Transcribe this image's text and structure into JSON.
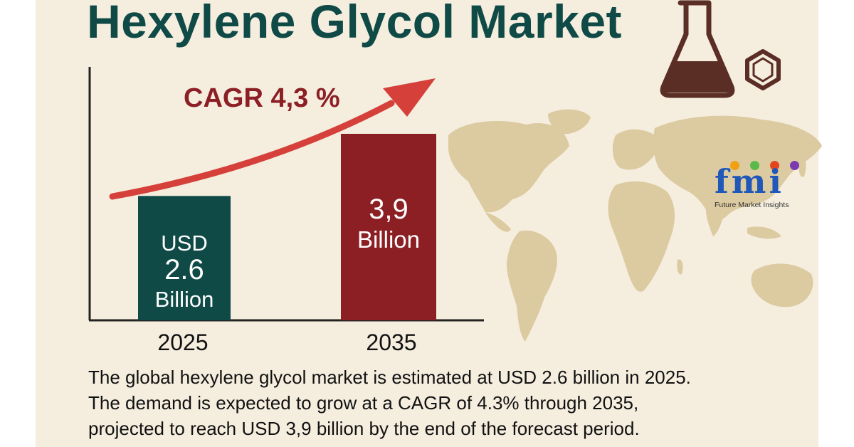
{
  "title": "Hexylene Glycol Market",
  "chart_data": {
    "type": "bar",
    "categories": [
      "2025",
      "2035"
    ],
    "values": [
      2.6,
      3.9
    ],
    "bar_labels": [
      [
        "USD",
        "2.6",
        "Billion"
      ],
      [
        "3,9",
        "Billion"
      ]
    ],
    "annotation": "CAGR 4,3 %",
    "colors": [
      "#0f4a47",
      "#8c1f24"
    ],
    "arrow_color": "#d5403a"
  },
  "logo": {
    "mark": "fmi",
    "subtitle": "Future Market Insights",
    "dot_colors": [
      "#f0a010",
      "#59b94a",
      "#e2461f",
      "#7a3bb0"
    ]
  },
  "description": [
    "The global hexylene glycol market is estimated at USD 2.6 billion in 2025.",
    "The demand is expected to grow at a CAGR of 4.3% through 2035,",
    "projected to reach USD 3,9 billion by the end of the forecast period."
  ],
  "colors": {
    "background": "#f5eedf",
    "title": "#0f4a47",
    "map": "#dccaa0",
    "flask": "#5a2e24"
  }
}
